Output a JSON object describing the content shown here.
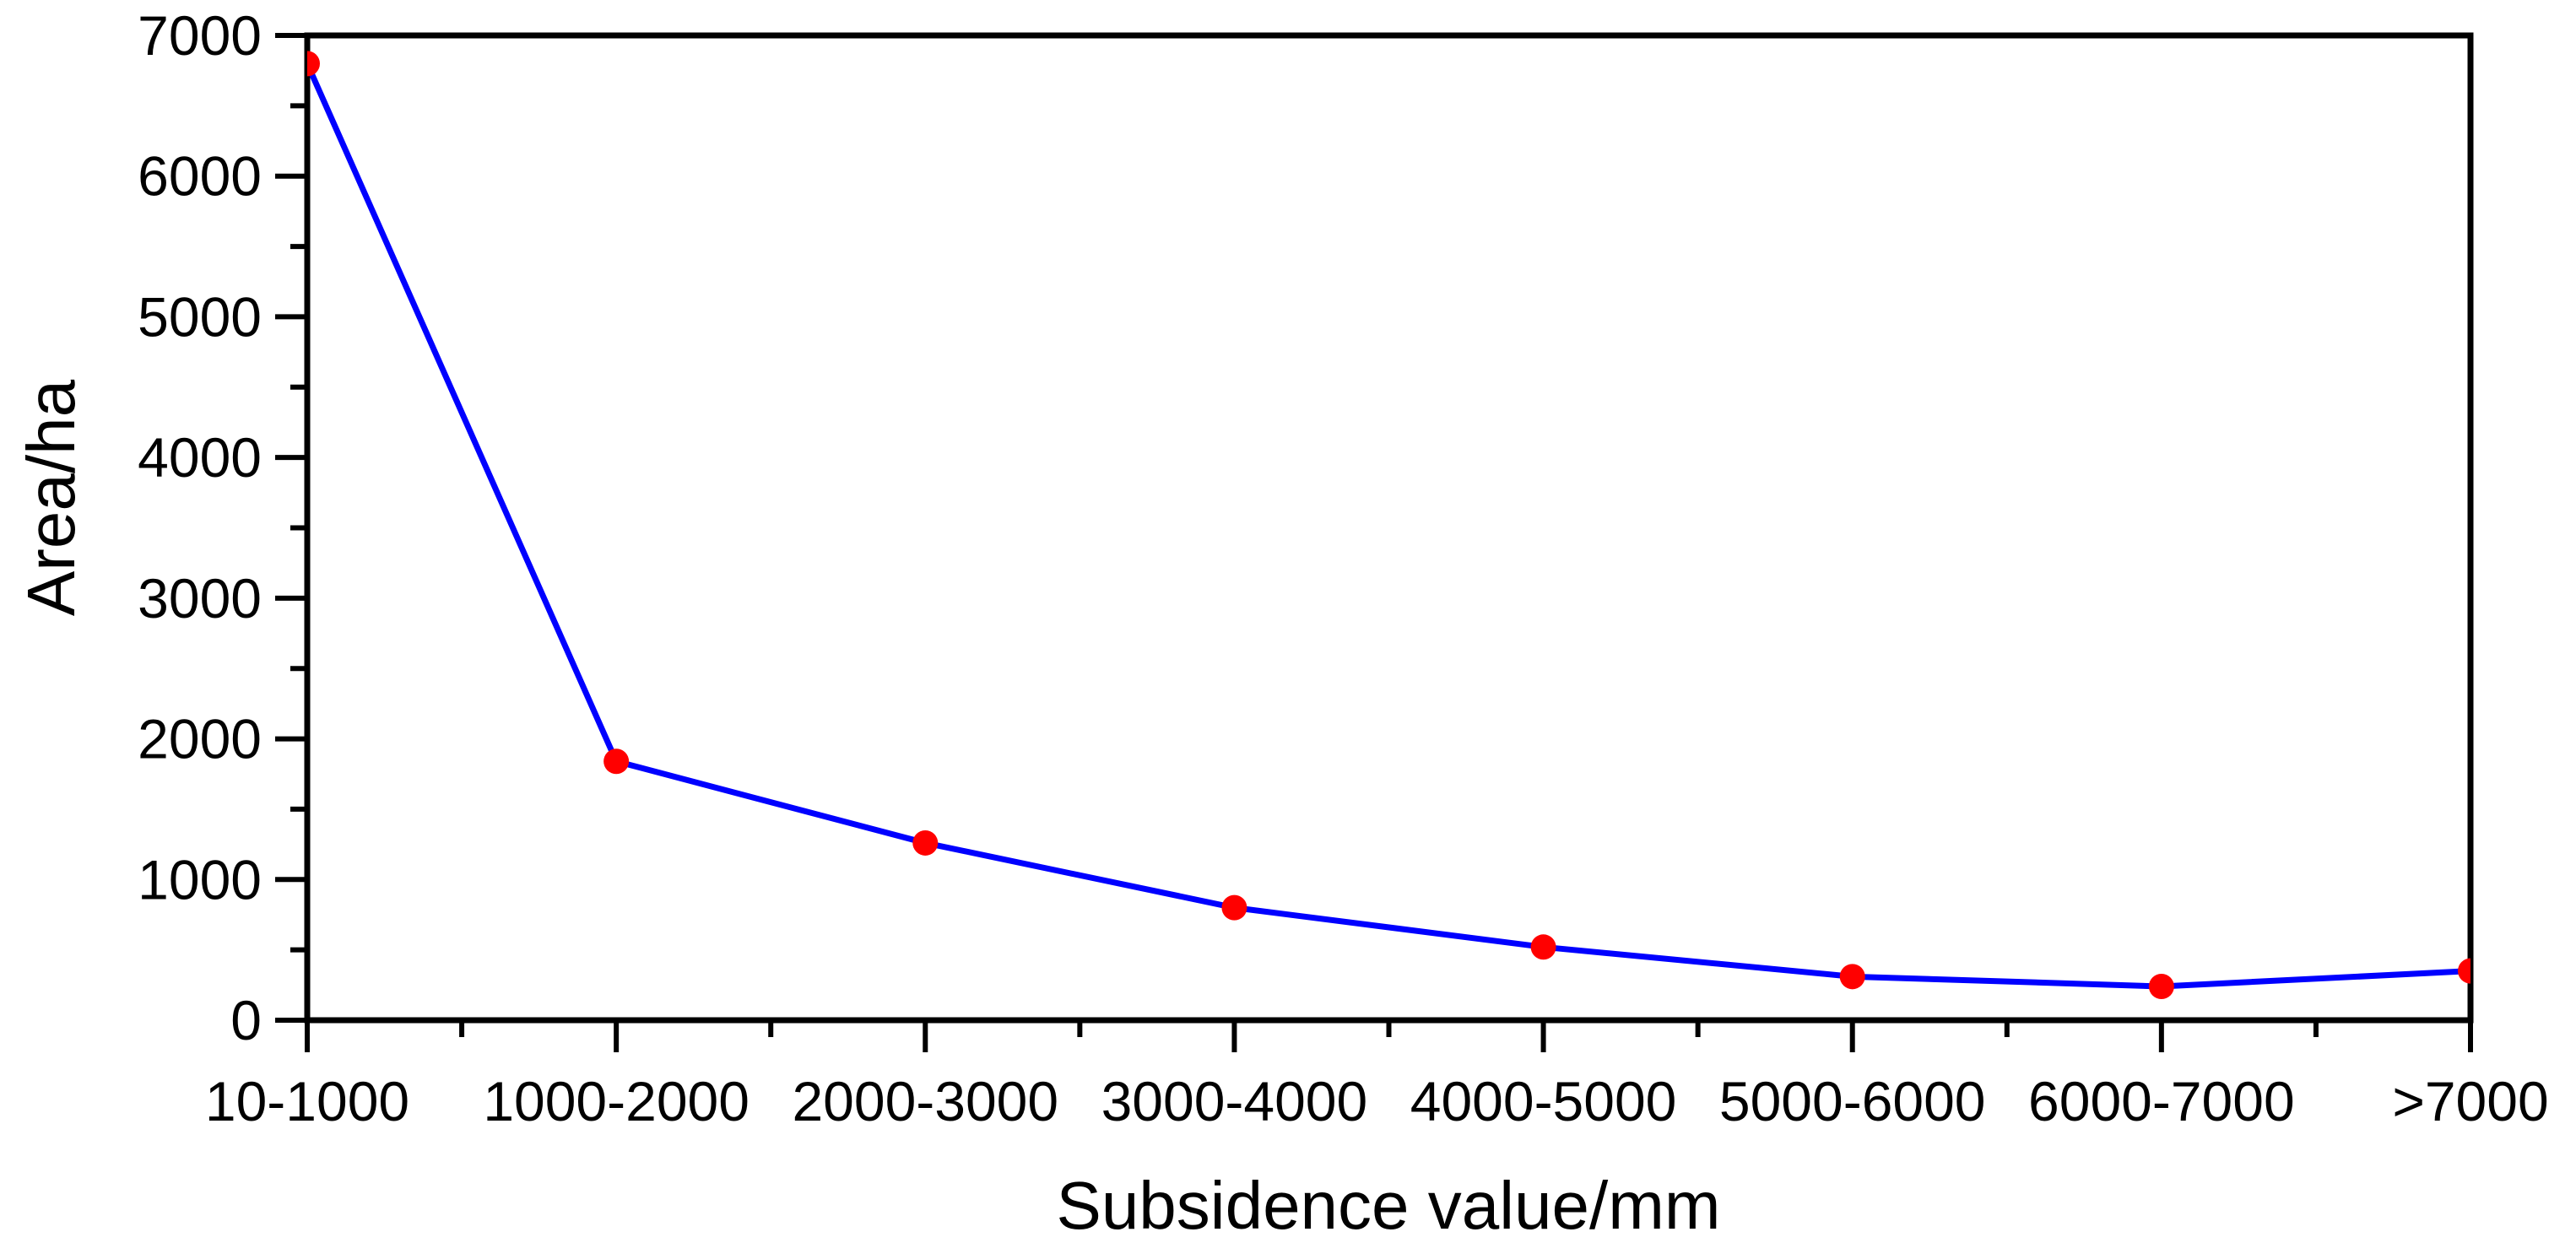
{
  "chart": {
    "xlabel": "Subsidence value/mm",
    "ylabel": "Area/ha"
  },
  "chart_data": {
    "type": "line",
    "title": "",
    "xlabel": "Subsidence value/mm",
    "ylabel": "Area/ha",
    "categories": [
      "10-1000",
      "1000-2000",
      "2000-3000",
      "3000-4000",
      "4000-5000",
      "5000-6000",
      "6000-7000",
      ">7000"
    ],
    "values": [
      6800,
      1840,
      1260,
      800,
      520,
      310,
      240,
      350
    ],
    "ylim": [
      0,
      7000
    ],
    "ytick_step": 1000,
    "ytick_labels": [
      "0",
      "1000",
      "2000",
      "3000",
      "4000",
      "5000",
      "6000",
      "7000"
    ],
    "yminor_step": 500,
    "xminor_ticks": "midpoints",
    "grid": false,
    "legend_position": "none",
    "frame": true,
    "line_color": "#0000ff",
    "marker_color": "#ff0000",
    "marker_shape": "circle",
    "axis_color": "#000000",
    "background_color": "#ffffff"
  }
}
